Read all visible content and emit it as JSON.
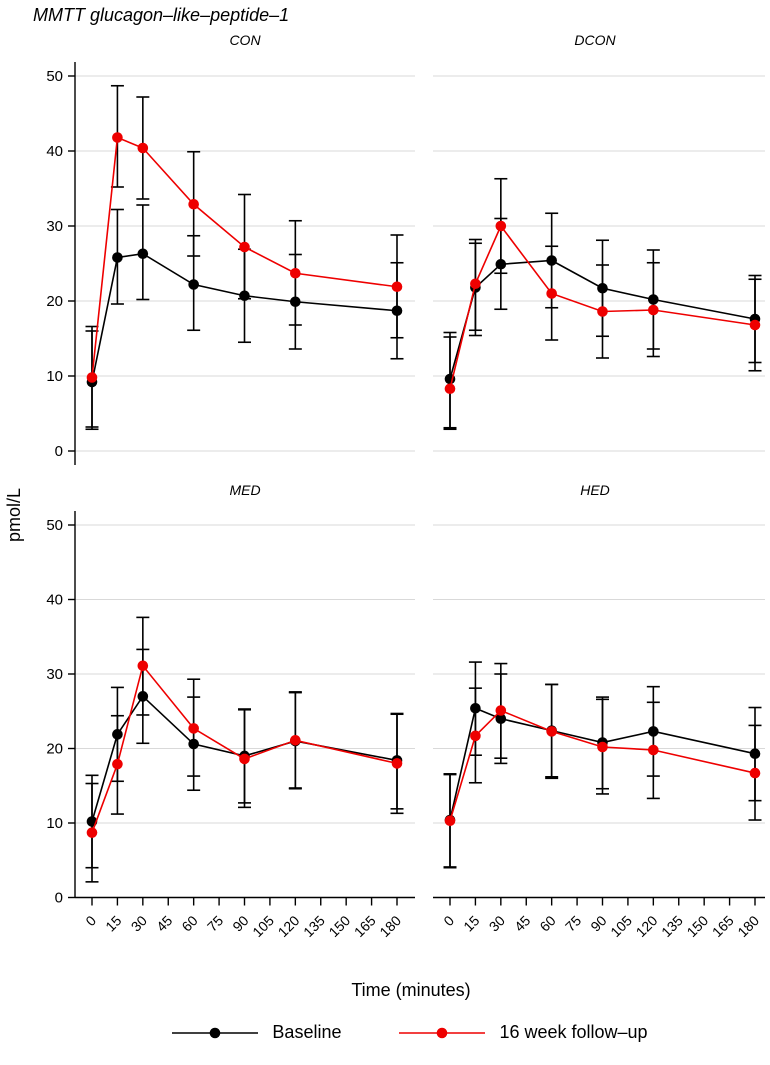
{
  "chart_data": {
    "type": "line",
    "title": "MMTT glucagon–like–peptide–1",
    "ylabel": "pmol/L",
    "xlabel": "Time (minutes)",
    "x": [
      0,
      15,
      30,
      60,
      90,
      120,
      180
    ],
    "x_ticks": [
      0,
      15,
      30,
      45,
      60,
      75,
      90,
      105,
      120,
      135,
      150,
      165,
      180
    ],
    "y_ticks": [
      0,
      10,
      20,
      30,
      40,
      50
    ],
    "ylim": [
      0,
      52
    ],
    "grid": "horizontal gridlines on, light gray",
    "errorbar_color": "#000000",
    "legend_position": "bottom center",
    "legend": [
      {
        "name": "Baseline",
        "color": "#000000"
      },
      {
        "name": "16 week follow–up",
        "color": "#ee0000"
      }
    ],
    "panels": [
      {
        "label": "CON",
        "series": [
          {
            "name": "Baseline",
            "color": "#000000",
            "values": [
              9.2,
              25.8,
              26.3,
              22.2,
              20.7,
              19.9,
              18.7
            ],
            "lo": [
              2.9,
              19.6,
              20.2,
              16.1,
              14.5,
              13.6,
              12.3
            ],
            "hi": [
              16.0,
              32.2,
              32.8,
              28.7,
              26.9,
              26.2,
              25.1
            ]
          },
          {
            "name": "16 week follow–up",
            "color": "#ee0000",
            "values": [
              9.8,
              41.8,
              40.4,
              32.9,
              27.2,
              23.7,
              21.9
            ],
            "lo": [
              3.2,
              35.2,
              33.6,
              26.0,
              20.3,
              16.8,
              15.1
            ],
            "hi": [
              16.6,
              48.7,
              47.2,
              39.9,
              34.2,
              30.7,
              28.8
            ]
          }
        ]
      },
      {
        "label": "DCON",
        "series": [
          {
            "name": "Baseline",
            "color": "#000000",
            "values": [
              9.6,
              21.8,
              24.9,
              25.4,
              21.7,
              20.2,
              17.6
            ],
            "lo": [
              3.1,
              15.4,
              18.9,
              19.1,
              15.3,
              13.6,
              11.8
            ],
            "hi": [
              15.8,
              28.2,
              31.0,
              31.7,
              28.1,
              26.8,
              23.4
            ]
          },
          {
            "name": "16 week follow–up",
            "color": "#ee0000",
            "values": [
              8.3,
              22.3,
              30.0,
              21.0,
              18.6,
              18.8,
              16.8
            ],
            "lo": [
              2.9,
              16.1,
              23.7,
              14.8,
              12.4,
              12.6,
              10.7
            ],
            "hi": [
              15.2,
              27.7,
              36.3,
              27.3,
              24.8,
              25.1,
              22.9
            ]
          }
        ]
      },
      {
        "label": "MED",
        "series": [
          {
            "name": "Baseline",
            "color": "#000000",
            "values": [
              10.2,
              21.9,
              27.0,
              20.6,
              19.0,
              21.0,
              18.4
            ],
            "lo": [
              4.0,
              15.6,
              20.7,
              14.4,
              12.7,
              14.6,
              11.9
            ],
            "hi": [
              16.4,
              28.2,
              33.3,
              26.9,
              25.3,
              27.5,
              24.6
            ]
          },
          {
            "name": "16 week follow–up",
            "color": "#ee0000",
            "values": [
              8.7,
              17.9,
              31.1,
              22.7,
              18.6,
              21.1,
              18.0
            ],
            "lo": [
              2.1,
              11.2,
              24.5,
              16.3,
              12.1,
              14.7,
              11.3
            ],
            "hi": [
              15.3,
              24.4,
              37.6,
              29.3,
              25.2,
              27.6,
              24.7
            ]
          }
        ]
      },
      {
        "label": "HED",
        "series": [
          {
            "name": "Baseline",
            "color": "#000000",
            "values": [
              10.4,
              25.4,
              24.0,
              22.4,
              20.8,
              22.3,
              19.3
            ],
            "lo": [
              4.1,
              19.1,
              18.0,
              16.2,
              14.6,
              16.3,
              13.0
            ],
            "hi": [
              16.6,
              31.6,
              30.0,
              28.6,
              26.9,
              28.3,
              25.5
            ]
          },
          {
            "name": "16 week follow–up",
            "color": "#ee0000",
            "values": [
              10.3,
              21.7,
              25.1,
              22.3,
              20.2,
              19.8,
              16.7
            ],
            "lo": [
              4.0,
              15.4,
              18.7,
              16.0,
              13.9,
              13.3,
              10.4
            ],
            "hi": [
              16.5,
              28.1,
              31.4,
              28.6,
              26.6,
              26.2,
              23.1
            ]
          }
        ]
      }
    ]
  }
}
